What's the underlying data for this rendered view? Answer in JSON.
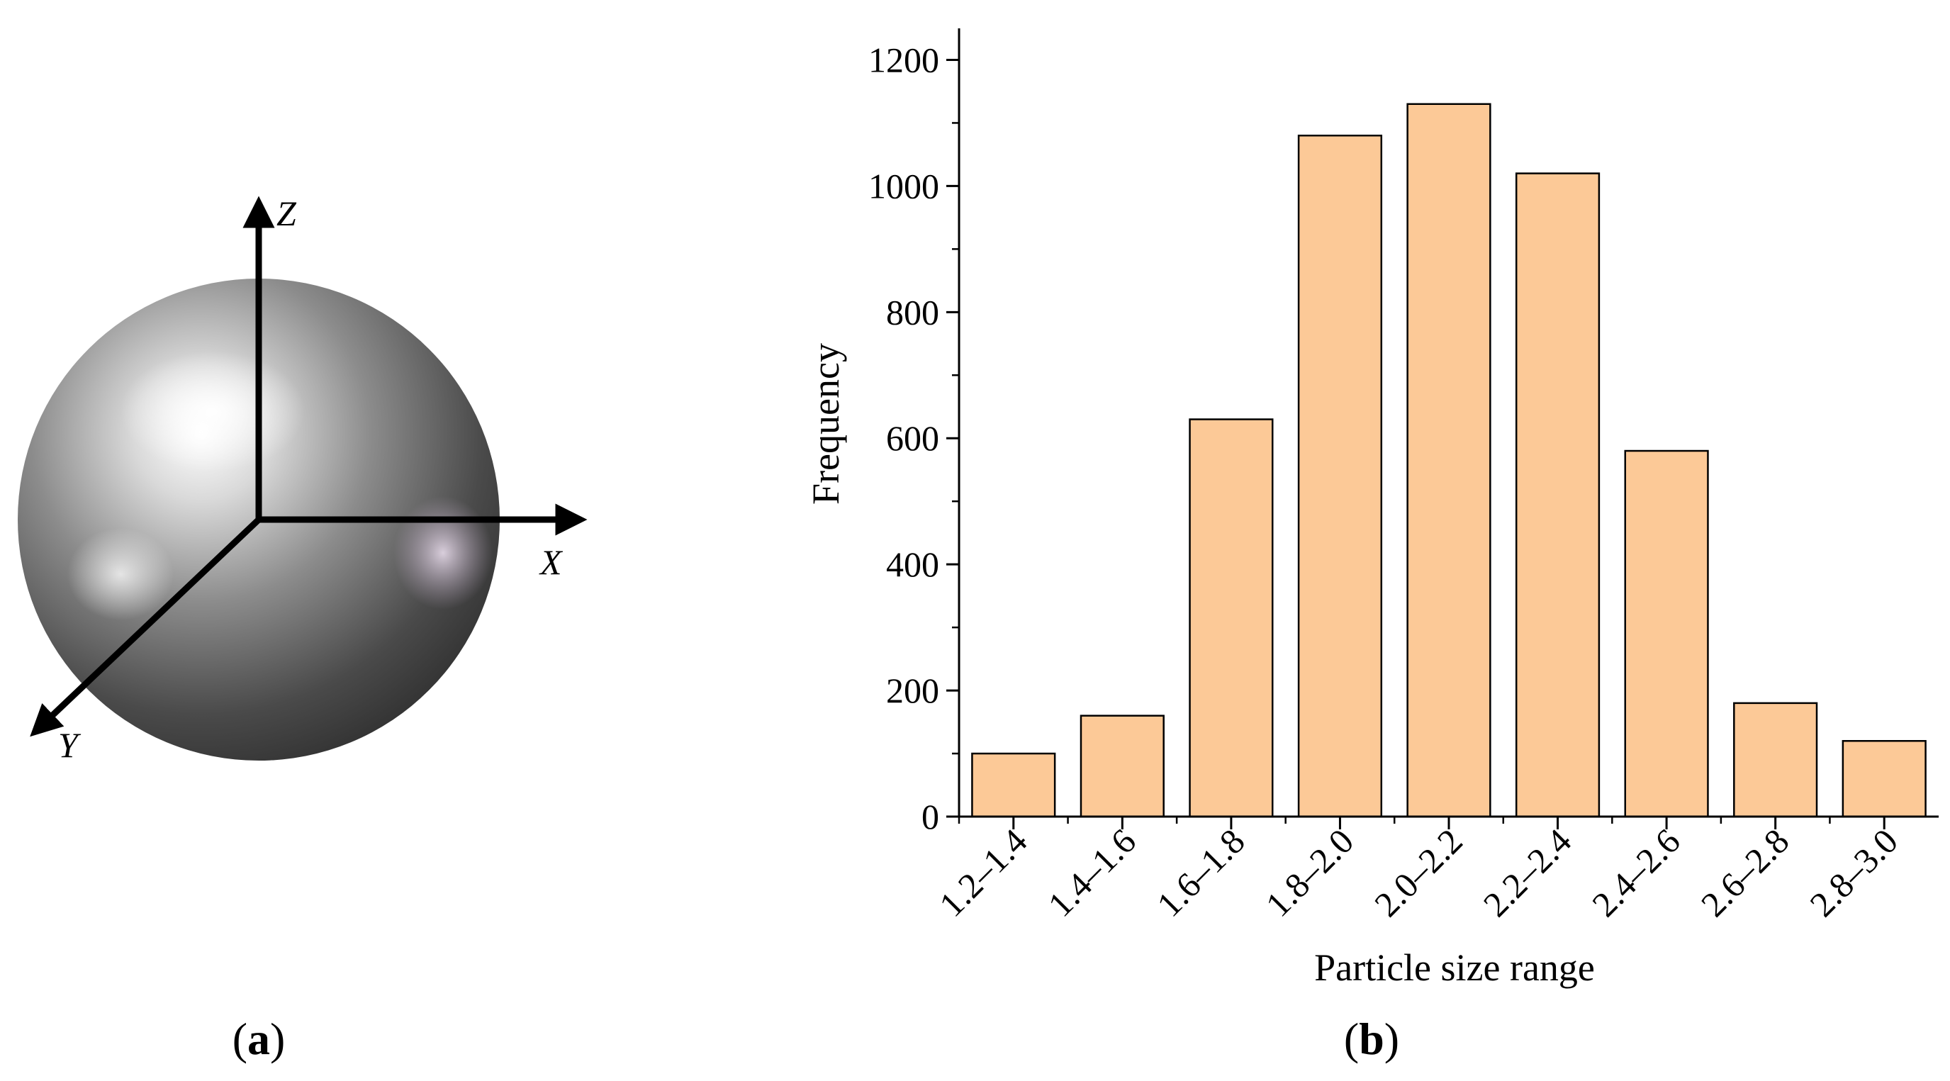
{
  "panel_a": {
    "label_open": "(",
    "label_letter": "a",
    "label_close": ")",
    "axis_x": "X",
    "axis_y": "Y",
    "axis_z": "Z"
  },
  "panel_b": {
    "label_open": "(",
    "label_letter": "b",
    "label_close": ")"
  },
  "chart_data": {
    "type": "bar",
    "categories": [
      "1.2–1.4",
      "1.4–1.6",
      "1.6–1.8",
      "1.8–2.0",
      "2.0–2.2",
      "2.2–2.4",
      "2.4–2.6",
      "2.6–2.8",
      "2.8–3.0"
    ],
    "values": [
      100,
      160,
      630,
      1080,
      1130,
      1020,
      580,
      180,
      120
    ],
    "title": "",
    "xlabel": "Particle size range",
    "ylabel": "Frequency",
    "ylim": [
      0,
      1250
    ],
    "yticks": [
      0,
      200,
      400,
      600,
      800,
      1000,
      1200
    ],
    "grid": false,
    "bar_color": "#FCC997",
    "bar_edge_color": "#000000"
  }
}
